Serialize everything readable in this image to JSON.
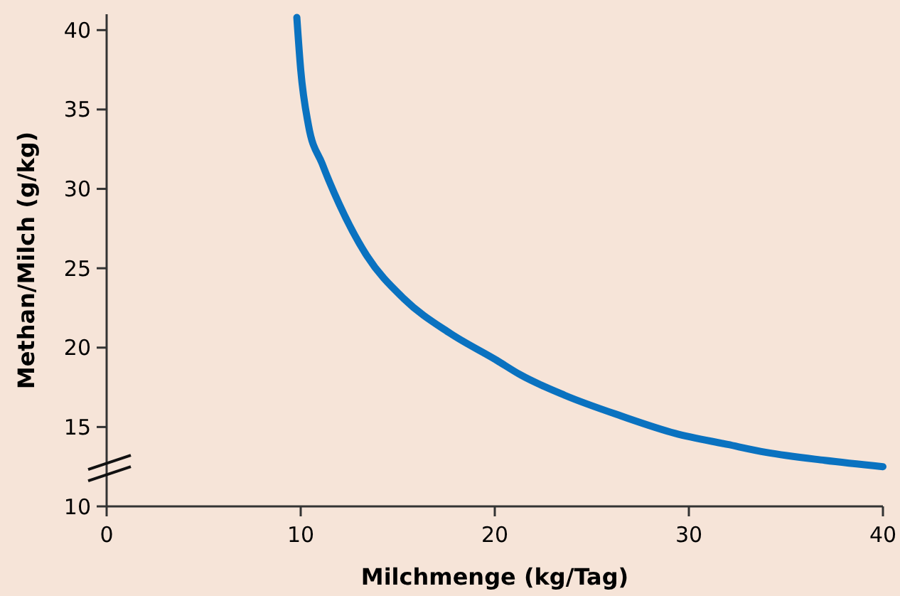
{
  "chart_data": {
    "type": "line",
    "xlabel": "Milchmenge (kg/Tag)",
    "ylabel": "Methan/Milch (g/kg)",
    "xlim": [
      0,
      40
    ],
    "xticks": [
      0,
      10,
      20,
      30,
      40
    ],
    "ylim": [
      10,
      41
    ],
    "yticks": [
      10,
      15,
      20,
      25,
      30,
      35,
      40
    ],
    "grid": false,
    "marker": "none",
    "line_style": "solid",
    "series": [
      {
        "color": "#0a72c0",
        "x": [
          9.8,
          10.0,
          10.4,
          11.1,
          12.0,
          13.4,
          15.3,
          17.7,
          20.1,
          21.3,
          23.6,
          26.5,
          29.3,
          32.0,
          34.0,
          37.0,
          40.0
        ],
        "values": [
          40.8,
          37.5,
          34.0,
          31.6,
          29.0,
          25.8,
          23.1,
          20.9,
          19.2,
          18.3,
          17.0,
          15.7,
          14.6,
          13.9,
          13.4,
          12.9,
          12.5
        ]
      }
    ]
  }
}
